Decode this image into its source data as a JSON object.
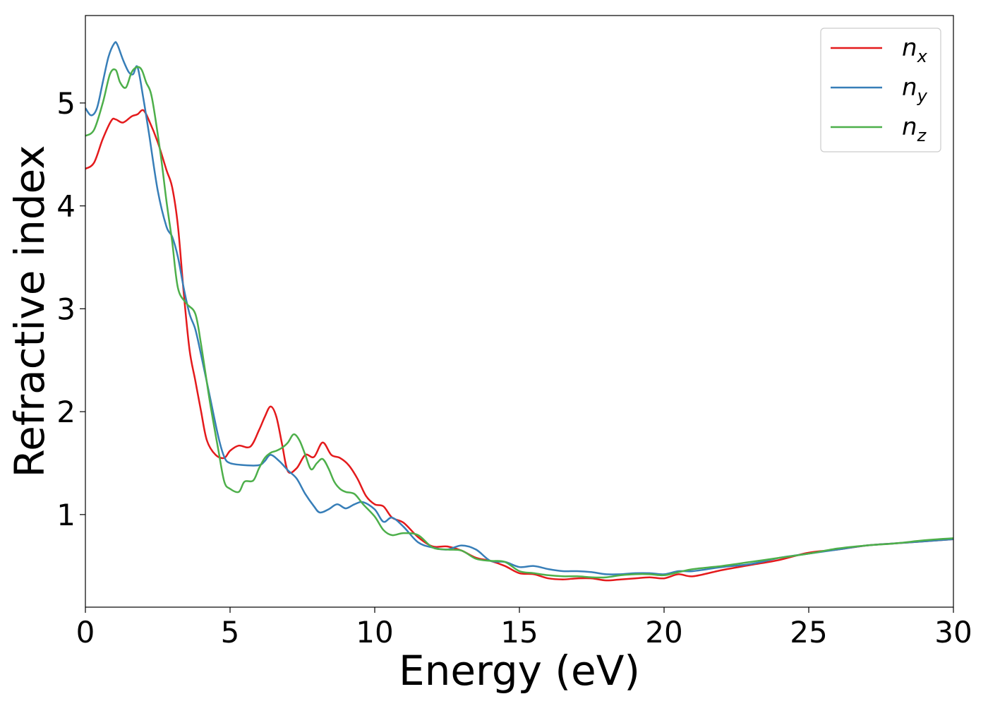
{
  "chart_data": {
    "type": "line",
    "title": "",
    "xlabel": "Energy (eV)",
    "ylabel": "Refractive index",
    "xlim": [
      0,
      30
    ],
    "ylim": [
      0.1,
      5.85
    ],
    "xticks": [
      0,
      5,
      10,
      15,
      20,
      25,
      30
    ],
    "xtick_labels": [
      "0",
      "5",
      "10",
      "15",
      "20",
      "25",
      "30"
    ],
    "yticks": [
      1,
      2,
      3,
      4,
      5
    ],
    "ytick_labels": [
      "1",
      "2",
      "3",
      "4",
      "5"
    ],
    "grid": false,
    "legend_position": "top-right",
    "series": [
      {
        "name": "n_x",
        "base": "n",
        "sub": "x",
        "color": "#e41a1c",
        "x": [
          0,
          0.3,
          0.6,
          0.9,
          1.05,
          1.3,
          1.6,
          1.8,
          2.0,
          2.2,
          2.5,
          2.8,
          3.0,
          3.2,
          3.4,
          3.6,
          3.8,
          4.0,
          4.2,
          4.5,
          4.8,
          5.0,
          5.3,
          5.7,
          6.0,
          6.2,
          6.4,
          6.6,
          6.8,
          7.0,
          7.3,
          7.6,
          7.9,
          8.2,
          8.5,
          8.8,
          9.1,
          9.4,
          9.7,
          10.0,
          10.3,
          10.6,
          11.0,
          11.5,
          12.0,
          12.5,
          13.0,
          13.5,
          14.0,
          14.5,
          15.0,
          15.5,
          16.0,
          16.5,
          17.0,
          17.5,
          18.0,
          18.5,
          19.0,
          19.5,
          20.0,
          20.5,
          21.0,
          22.0,
          23.0,
          24.0,
          25.0,
          26.0,
          27.0,
          28.0,
          29.0,
          30.0
        ],
        "y": [
          4.36,
          4.42,
          4.65,
          4.83,
          4.84,
          4.81,
          4.87,
          4.89,
          4.93,
          4.83,
          4.62,
          4.35,
          4.18,
          3.8,
          3.15,
          2.6,
          2.3,
          2.0,
          1.72,
          1.58,
          1.55,
          1.62,
          1.67,
          1.66,
          1.82,
          1.95,
          2.05,
          1.95,
          1.68,
          1.42,
          1.45,
          1.58,
          1.56,
          1.7,
          1.58,
          1.55,
          1.48,
          1.35,
          1.18,
          1.1,
          1.08,
          0.97,
          0.92,
          0.78,
          0.69,
          0.69,
          0.65,
          0.58,
          0.55,
          0.5,
          0.43,
          0.42,
          0.38,
          0.37,
          0.38,
          0.38,
          0.36,
          0.37,
          0.38,
          0.39,
          0.38,
          0.42,
          0.4,
          0.46,
          0.51,
          0.56,
          0.63,
          0.66,
          0.7,
          0.72,
          0.74,
          0.76
        ]
      },
      {
        "name": "n_y",
        "base": "n",
        "sub": "y",
        "color": "#377eb8",
        "x": [
          0,
          0.2,
          0.4,
          0.6,
          0.8,
          1.0,
          1.1,
          1.3,
          1.5,
          1.65,
          1.8,
          2.0,
          2.2,
          2.5,
          2.8,
          3.0,
          3.2,
          3.4,
          3.6,
          3.8,
          4.0,
          4.3,
          4.6,
          4.8,
          5.0,
          5.5,
          6.0,
          6.2,
          6.4,
          6.7,
          7.0,
          7.3,
          7.6,
          7.9,
          8.1,
          8.4,
          8.7,
          9.0,
          9.3,
          9.6,
          10.0,
          10.3,
          10.6,
          11.0,
          11.5,
          12.0,
          12.5,
          13.0,
          13.5,
          14.0,
          14.5,
          15.0,
          15.5,
          16.0,
          16.5,
          17.0,
          17.5,
          18.0,
          18.5,
          19.0,
          19.5,
          20.0,
          20.5,
          21.0,
          22.0,
          23.0,
          24.0,
          25.0,
          26.0,
          27.0,
          28.0,
          29.0,
          30.0
        ],
        "y": [
          4.95,
          4.88,
          4.95,
          5.2,
          5.45,
          5.58,
          5.57,
          5.42,
          5.3,
          5.28,
          5.35,
          5.05,
          4.7,
          4.15,
          3.8,
          3.7,
          3.5,
          3.2,
          2.95,
          2.8,
          2.55,
          2.15,
          1.75,
          1.56,
          1.5,
          1.48,
          1.48,
          1.52,
          1.58,
          1.52,
          1.43,
          1.35,
          1.2,
          1.08,
          1.02,
          1.05,
          1.1,
          1.06,
          1.1,
          1.12,
          1.05,
          0.93,
          0.97,
          0.88,
          0.73,
          0.68,
          0.66,
          0.7,
          0.66,
          0.55,
          0.54,
          0.49,
          0.5,
          0.47,
          0.45,
          0.45,
          0.44,
          0.42,
          0.42,
          0.43,
          0.43,
          0.42,
          0.45,
          0.45,
          0.49,
          0.52,
          0.58,
          0.62,
          0.66,
          0.7,
          0.72,
          0.74,
          0.76
        ]
      },
      {
        "name": "n_z",
        "base": "n",
        "sub": "z",
        "color": "#4daf4a",
        "x": [
          0,
          0.3,
          0.6,
          0.85,
          1.05,
          1.2,
          1.4,
          1.6,
          1.8,
          1.95,
          2.1,
          2.3,
          2.6,
          2.8,
          3.0,
          3.2,
          3.5,
          3.8,
          4.0,
          4.3,
          4.6,
          4.8,
          5.0,
          5.3,
          5.5,
          5.8,
          6.0,
          6.2,
          6.4,
          6.6,
          6.8,
          7.0,
          7.2,
          7.4,
          7.6,
          7.8,
          8.0,
          8.2,
          8.4,
          8.6,
          8.8,
          9.0,
          9.3,
          9.6,
          10.0,
          10.3,
          10.6,
          11.0,
          11.5,
          12.0,
          12.5,
          13.0,
          13.5,
          14.0,
          14.5,
          15.0,
          15.5,
          16.0,
          16.5,
          17.0,
          17.5,
          18.0,
          18.5,
          19.0,
          19.5,
          20.0,
          20.5,
          21.0,
          22.0,
          23.0,
          24.0,
          25.0,
          26.0,
          27.0,
          28.0,
          29.0,
          30.0
        ],
        "y": [
          4.68,
          4.74,
          5.0,
          5.28,
          5.32,
          5.2,
          5.15,
          5.3,
          5.35,
          5.32,
          5.2,
          5.05,
          4.5,
          4.05,
          3.65,
          3.2,
          3.05,
          2.95,
          2.65,
          2.1,
          1.62,
          1.32,
          1.25,
          1.22,
          1.32,
          1.33,
          1.45,
          1.55,
          1.6,
          1.62,
          1.65,
          1.7,
          1.78,
          1.72,
          1.58,
          1.44,
          1.5,
          1.54,
          1.45,
          1.32,
          1.25,
          1.22,
          1.2,
          1.1,
          0.98,
          0.85,
          0.8,
          0.82,
          0.8,
          0.68,
          0.66,
          0.65,
          0.57,
          0.55,
          0.54,
          0.45,
          0.43,
          0.41,
          0.4,
          0.4,
          0.39,
          0.39,
          0.41,
          0.42,
          0.42,
          0.41,
          0.44,
          0.47,
          0.5,
          0.54,
          0.58,
          0.62,
          0.67,
          0.7,
          0.72,
          0.75,
          0.77
        ]
      }
    ]
  }
}
